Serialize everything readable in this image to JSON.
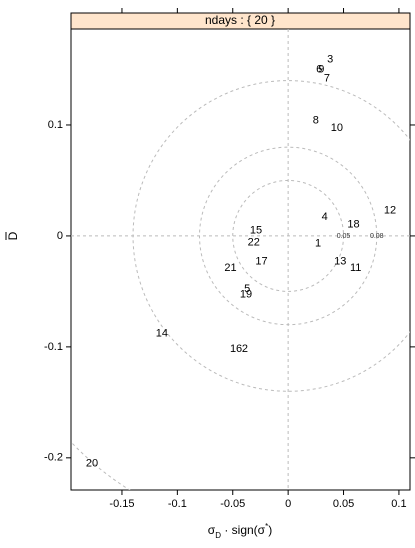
{
  "chart_data": {
    "type": "scatter",
    "strip": "ndays : { 20 }",
    "x_label_parts": [
      {
        "text": "σ"
      },
      {
        "text": "D",
        "shift": "sub"
      },
      {
        "text": " · sign(σ"
      },
      {
        "text": "*",
        "shift": "super"
      },
      {
        "text": ")"
      }
    ],
    "y_label": "D",
    "xlim": [
      -0.196,
      0.11
    ],
    "ylim": [
      -0.229,
      0.1865
    ],
    "xticks": [
      -0.15,
      -0.1,
      -0.05,
      0,
      0.05,
      0.1
    ],
    "yticks": [
      -0.2,
      -0.1,
      0,
      0.1
    ],
    "labels": [
      "3",
      "6",
      "9",
      "7",
      "8",
      "10",
      "12",
      "4",
      "18",
      "15",
      "22",
      "1",
      "17",
      "13",
      "11",
      "21",
      "5",
      "19",
      "14",
      "16",
      "2",
      "20"
    ],
    "x": [
      0.038,
      0.028,
      0.03,
      0.035,
      0.025,
      0.044,
      0.092,
      0.033,
      0.059,
      -0.029,
      -0.031,
      0.027,
      -0.024,
      0.047,
      0.061,
      -0.052,
      -0.037,
      -0.038,
      -0.114,
      -0.047,
      -0.039,
      -0.177
    ],
    "y": [
      0.159,
      0.15,
      0.15,
      0.142,
      0.104,
      0.097,
      0.023,
      0.017,
      0.01,
      0.005,
      -0.006,
      -0.007,
      -0.023,
      -0.023,
      -0.029,
      -0.029,
      -0.048,
      -0.053,
      -0.088,
      -0.102,
      -0.102,
      -0.205
    ],
    "circles": [
      {
        "r": 0.05,
        "label": "0.05"
      },
      {
        "r": 0.08,
        "label": "0.08"
      },
      {
        "r": 0.14
      },
      {
        "r": 0.27
      }
    ],
    "color": "#000000"
  }
}
